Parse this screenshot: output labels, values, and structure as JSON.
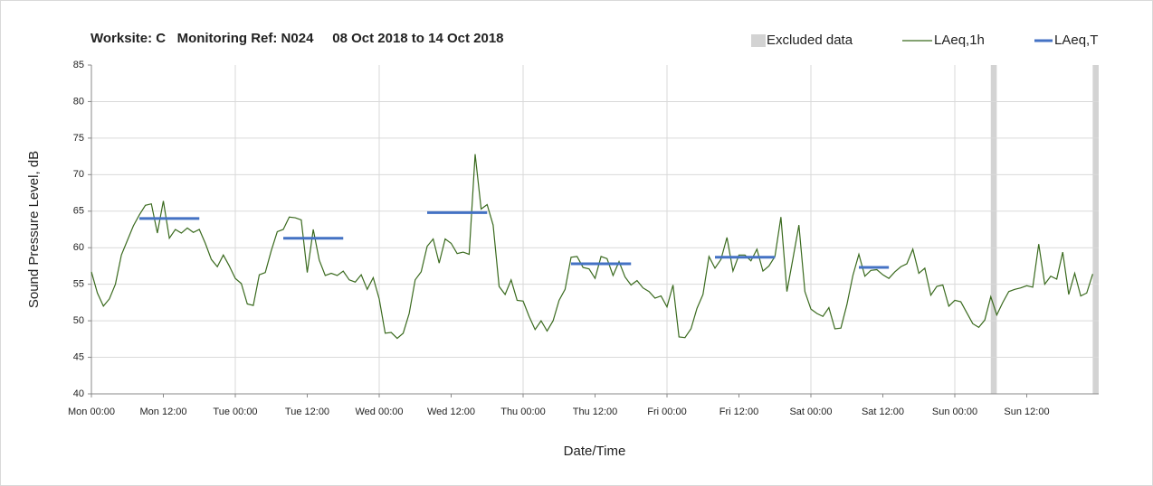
{
  "chart_data": {
    "type": "line",
    "title": "Worksite: C   Monitoring Ref: N024     08 Oct 2018 to 14 Oct 2018",
    "y_label": "Sound Pressure Level, dB",
    "x_label": "Date/Time",
    "ylim": [
      40,
      85
    ],
    "yticks": [
      40,
      45,
      50,
      55,
      60,
      65,
      70,
      75,
      80,
      85
    ],
    "grid": true,
    "legend": "top-right",
    "categories": [
      "Mon 00:00",
      null,
      null,
      null,
      null,
      null,
      null,
      null,
      null,
      null,
      null,
      null,
      "Mon 12:00",
      null,
      null,
      null,
      null,
      null,
      null,
      null,
      null,
      null,
      null,
      null,
      "Tue 00:00",
      null,
      null,
      null,
      null,
      null,
      null,
      null,
      null,
      null,
      null,
      null,
      "Tue 12:00",
      null,
      null,
      null,
      null,
      null,
      null,
      null,
      null,
      null,
      null,
      null,
      "Wed 00:00",
      null,
      null,
      null,
      null,
      null,
      null,
      null,
      null,
      null,
      null,
      null,
      "Wed 12:00",
      null,
      null,
      null,
      null,
      null,
      null,
      null,
      null,
      null,
      null,
      null,
      "Thu 00:00",
      null,
      null,
      null,
      null,
      null,
      null,
      null,
      null,
      null,
      null,
      null,
      "Thu 12:00",
      null,
      null,
      null,
      null,
      null,
      null,
      null,
      null,
      null,
      null,
      null,
      "Fri 00:00",
      null,
      null,
      null,
      null,
      null,
      null,
      null,
      null,
      null,
      null,
      null,
      "Fri 12:00",
      null,
      null,
      null,
      null,
      null,
      null,
      null,
      null,
      null,
      null,
      null,
      "Sat 00:00",
      null,
      null,
      null,
      null,
      null,
      null,
      null,
      null,
      null,
      null,
      null,
      "Sat 12:00",
      null,
      null,
      null,
      null,
      null,
      null,
      null,
      null,
      null,
      null,
      null,
      "Sun 00:00",
      null,
      null,
      null,
      null,
      null,
      null,
      null,
      null,
      null,
      null,
      null,
      "Sun 12:00",
      null,
      null,
      null,
      null,
      null,
      null,
      null,
      null,
      null,
      null,
      null
    ],
    "excluded": {
      "name": "Excluded data",
      "color": "#d3d3d3",
      "x": [
        150,
        167
      ]
    },
    "series": [
      {
        "name": "LAeq,1h",
        "color": "#3a6a1e",
        "values": [
          56.7,
          53.8,
          52,
          53,
          55,
          59,
          61,
          63,
          64.5,
          65.8,
          66,
          62,
          66.4,
          61.3,
          62.5,
          62,
          62.7,
          62.1,
          62.5,
          60.6,
          58.4,
          57.4,
          59,
          57.5,
          55.8,
          55.1,
          52.3,
          52.1,
          56.3,
          56.6,
          59.6,
          62.2,
          62.5,
          64.2,
          64.1,
          63.8,
          56.6,
          62.5,
          58.3,
          56.2,
          56.5,
          56.2,
          56.8,
          55.6,
          55.3,
          56.3,
          54.3,
          55.9,
          53,
          48.3,
          48.4,
          47.6,
          48.3,
          51,
          55.6,
          56.7,
          60.2,
          61.2,
          57.9,
          61.2,
          60.6,
          59.2,
          59.4,
          59.1,
          72.8,
          65.3,
          65.9,
          63.1,
          54.7,
          53.6,
          55.6,
          52.8,
          52.7,
          50.6,
          48.8,
          50,
          48.6,
          50,
          52.8,
          54.3,
          58.7,
          58.8,
          57.3,
          57.1,
          55.8,
          58.8,
          58.5,
          56.2,
          58.1,
          56,
          54.9,
          55.5,
          54.5,
          54,
          53.1,
          53.4,
          51.9,
          54.9,
          47.8,
          47.7,
          48.9,
          51.7,
          53.6,
          58.8,
          57.2,
          58.4,
          61.4,
          56.8,
          59,
          59,
          58.2,
          59.8,
          56.8,
          57.5,
          58.8,
          64.2,
          54,
          58.5,
          63.1,
          54,
          51.6,
          51,
          50.6,
          51.8,
          48.9,
          49,
          52.2,
          56.2,
          59.1,
          56.1,
          56.9,
          57,
          56.3,
          55.8,
          56.7,
          57.4,
          57.8,
          59.8,
          56.5,
          57.2,
          53.5,
          54.7,
          54.9,
          52,
          52.8,
          52.6,
          51.1,
          49.6,
          49.1,
          50.1,
          53.3,
          50.8,
          52.5,
          54,
          54.3,
          54.5,
          54.8,
          54.6,
          60.5,
          55,
          56.1,
          55.7,
          59.4,
          53.6,
          56.5,
          53.4,
          53.8,
          56.4
        ]
      },
      {
        "name": "LAeq,T",
        "color": "#4472c4",
        "values": [
          null,
          null,
          null,
          null,
          null,
          null,
          null,
          null,
          64,
          64,
          64,
          64,
          64,
          64,
          64,
          64,
          64,
          64,
          64,
          null,
          null,
          null,
          null,
          null,
          null,
          null,
          null,
          null,
          null,
          null,
          null,
          null,
          61.3,
          61.3,
          61.3,
          61.3,
          61.3,
          61.3,
          61.3,
          61.3,
          61.3,
          61.3,
          61.3,
          null,
          null,
          null,
          null,
          null,
          null,
          null,
          null,
          null,
          null,
          null,
          null,
          null,
          64.8,
          64.8,
          64.8,
          64.8,
          64.8,
          64.8,
          64.8,
          64.8,
          64.8,
          64.8,
          64.8,
          null,
          null,
          null,
          null,
          null,
          null,
          null,
          null,
          null,
          null,
          null,
          null,
          null,
          57.8,
          57.8,
          57.8,
          57.8,
          57.8,
          57.8,
          57.8,
          57.8,
          57.8,
          57.8,
          57.8,
          null,
          null,
          null,
          null,
          null,
          null,
          null,
          null,
          null,
          null,
          null,
          null,
          null,
          58.7,
          58.7,
          58.7,
          58.7,
          58.7,
          58.7,
          58.7,
          58.7,
          58.7,
          58.7,
          58.7,
          null,
          null,
          null,
          null,
          null,
          null,
          null,
          null,
          null,
          null,
          null,
          null,
          null,
          57.3,
          57.3,
          57.3,
          57.3,
          57.3,
          57.3,
          null,
          null,
          null,
          null,
          null,
          null,
          null,
          null,
          null,
          null,
          null,
          null,
          null,
          null,
          null,
          null,
          null,
          null,
          null,
          null,
          null,
          null,
          null,
          null,
          null,
          null,
          null,
          null,
          null,
          null,
          null,
          null,
          null,
          null
        ]
      }
    ]
  }
}
